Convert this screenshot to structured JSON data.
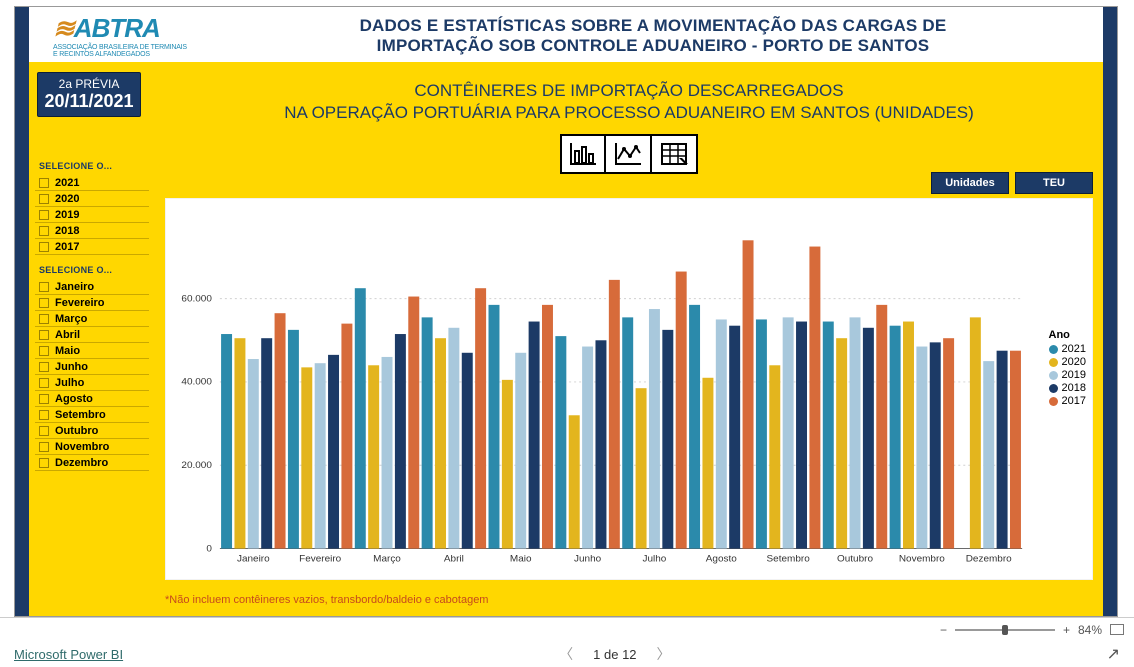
{
  "colors": {
    "navy": "#1c3a66",
    "yellow": "#ffd700",
    "white": "#ffffff",
    "footnote": "#c64a1d",
    "logo": "#1f8ab3",
    "logo_accent": "#d68a1e",
    "grid": "#d0d0d0"
  },
  "logo": {
    "brand": "ABTRA",
    "sub1": "ASSOCIAÇÃO BRASILEIRA DE TERMINAIS",
    "sub2": "E RECINTOS ALFANDEGADOS",
    "swoosh_icon": "≋"
  },
  "header_title": "DADOS E ESTATÍSTICAS SOBRE A MOVIMENTAÇÃO DAS CARGAS DE\nIMPORTAÇÃO SOB CONTROLE ADUANEIRO - PORTO DE SANTOS",
  "date_box": {
    "line1": "2a PRÉVIA",
    "line2": "20/11/2021"
  },
  "subtitle": "CONTÊINERES DE IMPORTAÇÃO DESCARREGADOS\nNA OPERAÇÃO PORTUÁRIA PARA PROCESSO ADUANEIRO EM SANTOS (UNIDADES)",
  "view_icons": {
    "bar_icon": "bar-chart-icon",
    "line_icon": "line-chart-icon",
    "table_icon": "table-icon"
  },
  "mode_buttons": {
    "units": "Unidades",
    "teu": "TEU"
  },
  "slicers": {
    "years_title": "SELECIONE O...",
    "years": [
      "2021",
      "2020",
      "2019",
      "2018",
      "2017"
    ],
    "months_title": "SELECIONE O...",
    "months": [
      "Janeiro",
      "Fevereiro",
      "Março",
      "Abril",
      "Maio",
      "Junho",
      "Julho",
      "Agosto",
      "Setembro",
      "Outubro",
      "Novembro",
      "Dezembro"
    ]
  },
  "legend": {
    "title": "Ano",
    "series": [
      {
        "name": "2021",
        "color": "#2b8aab"
      },
      {
        "name": "2020",
        "color": "#e3b51e"
      },
      {
        "name": "2019",
        "color": "#a8c8dc"
      },
      {
        "name": "2018",
        "color": "#1c3a66"
      },
      {
        "name": "2017",
        "color": "#d76b3a"
      }
    ]
  },
  "chart": {
    "type": "bar-grouped",
    "categories": [
      "Janeiro",
      "Fevereiro",
      "Março",
      "Abril",
      "Maio",
      "Junho",
      "Julho",
      "Agosto",
      "Setembro",
      "Outubro",
      "Novembro",
      "Dezembro"
    ],
    "y": {
      "min": 0,
      "max": 80000,
      "ticks": [
        0,
        20000,
        40000,
        60000
      ],
      "tick_labels": [
        "0",
        "20.000",
        "40.000",
        "60.000"
      ]
    },
    "series": [
      {
        "name": "2021",
        "color": "#2b8aab",
        "values": [
          51500,
          52500,
          62500,
          55500,
          58500,
          51000,
          55500,
          58500,
          55000,
          54500,
          53500,
          null
        ]
      },
      {
        "name": "2020",
        "color": "#e3b51e",
        "values": [
          50500,
          43500,
          44000,
          50500,
          40500,
          32000,
          38500,
          41000,
          44000,
          50500,
          54500,
          55500
        ]
      },
      {
        "name": "2019",
        "color": "#a8c8dc",
        "values": [
          45500,
          44500,
          46000,
          53000,
          47000,
          48500,
          57500,
          55000,
          55500,
          55500,
          48500,
          45000
        ]
      },
      {
        "name": "2018",
        "color": "#1c3a66",
        "values": [
          50500,
          46500,
          51500,
          47000,
          54500,
          50000,
          52500,
          53500,
          54500,
          53000,
          49500,
          47500
        ]
      },
      {
        "name": "2017",
        "color": "#d76b3a",
        "values": [
          56500,
          54000,
          60500,
          62500,
          58500,
          64500,
          66500,
          74000,
          72500,
          58500,
          50500,
          47500
        ]
      }
    ],
    "bar_width_ratio": 0.82,
    "background": "#ffffff",
    "font_size_axis": 10,
    "font_size_legend": 11
  },
  "footnote": "*Não incluem contêineres vazios, transbordo/baldeio e cabotagem",
  "zoom": {
    "level": "84%",
    "minus": "−",
    "plus": "+"
  },
  "footer": {
    "powerbi": "Microsoft Power BI",
    "pager": "1 de 12",
    "share_icon": "↗"
  }
}
